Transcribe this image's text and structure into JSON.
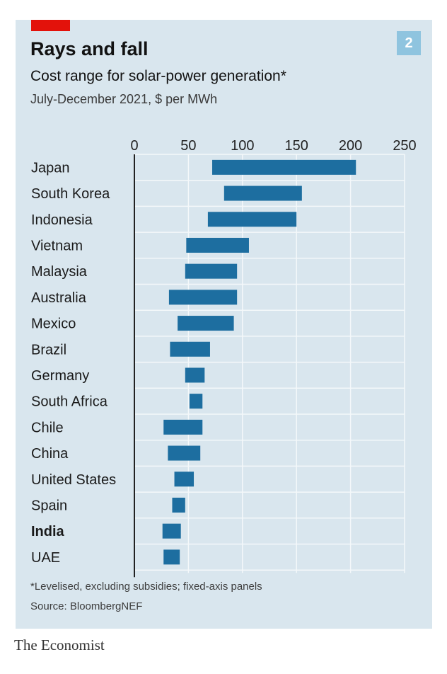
{
  "badge": "2",
  "title": "Rays and fall",
  "subtitle": "Cost range for solar-power generation*",
  "units": "July-December 2021, $ per MWh",
  "footnote": "*Levelised, excluding subsidies; fixed-axis panels",
  "source": "Source: BloombergNEF",
  "brand": "The Economist",
  "colors": {
    "background": "#d9e6ee",
    "bar": "#1d6ea0",
    "accent_red": "#e3120b",
    "badge": "#8fc4df",
    "grid": "#f4f8fa"
  },
  "chart_data": {
    "type": "bar",
    "orientation": "horizontal-range",
    "title": "Rays and fall",
    "xlabel": "$ per MWh",
    "xlim": [
      0,
      250
    ],
    "xticks": [
      0,
      50,
      100,
      150,
      200,
      250
    ],
    "grid": true,
    "highlight": "India",
    "series": [
      {
        "name": "Cost range",
        "categories": [
          "Japan",
          "South Korea",
          "Indonesia",
          "Vietnam",
          "Malaysia",
          "Australia",
          "Mexico",
          "Brazil",
          "Germany",
          "South Africa",
          "Chile",
          "China",
          "United States",
          "Spain",
          "India",
          "UAE"
        ],
        "min": [
          72,
          83,
          68,
          48,
          47,
          32,
          40,
          33,
          47,
          51,
          27,
          31,
          37,
          35,
          26,
          27
        ],
        "max": [
          205,
          155,
          150,
          106,
          95,
          95,
          92,
          70,
          65,
          63,
          63,
          61,
          55,
          47,
          43,
          42
        ]
      }
    ]
  }
}
